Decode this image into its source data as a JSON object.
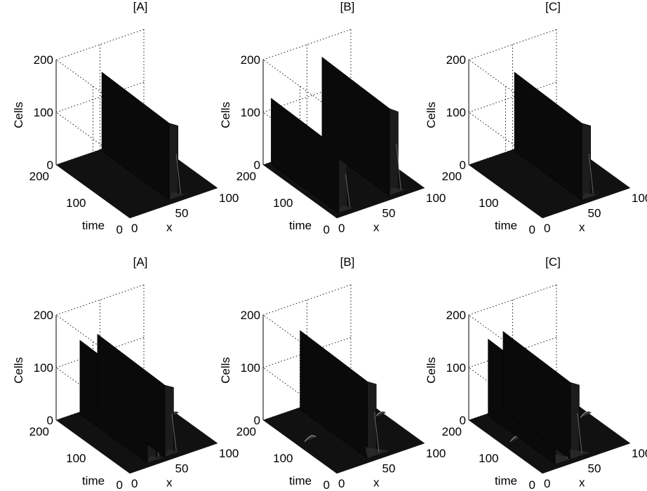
{
  "chart_data": [
    {
      "type": "surface",
      "title": "[A]",
      "xlabel": "x",
      "ylabel": "time",
      "zlabel": "Cells",
      "xlim": [
        0,
        100
      ],
      "ylim": [
        0,
        200
      ],
      "zlim": [
        0,
        200
      ],
      "xticks": [
        "0",
        "50",
        "100"
      ],
      "yticks": [
        "0",
        "100",
        "200"
      ],
      "zticks": [
        "0",
        "100",
        "200"
      ],
      "peaks": [
        {
          "x": 55,
          "height": 150,
          "side": 1,
          "tail": 0.35,
          "ripples": []
        }
      ]
    },
    {
      "type": "surface",
      "title": "[B]",
      "xlabel": "x",
      "ylabel": "time",
      "zlabel": "Cells",
      "xlim": [
        0,
        100
      ],
      "ylim": [
        0,
        200
      ],
      "zlim": [
        0,
        200
      ],
      "xticks": [
        "0",
        "50",
        "100"
      ],
      "yticks": [
        "0",
        "100",
        "200"
      ],
      "zticks": [
        "0",
        "100",
        "200"
      ],
      "peaks": [
        {
          "x": 12,
          "height": 125,
          "side": 1,
          "tail": 0.3,
          "ripples": []
        },
        {
          "x": 70,
          "height": 170,
          "side": 1,
          "tail": 0.35,
          "ripples": []
        }
      ]
    },
    {
      "type": "surface",
      "title": "[C]",
      "xlabel": "x",
      "ylabel": "time",
      "zlabel": "Cells",
      "xlim": [
        0,
        100
      ],
      "ylim": [
        0,
        200
      ],
      "zlim": [
        0,
        200
      ],
      "xticks": [
        "0",
        "50",
        "100"
      ],
      "yticks": [
        "0",
        "100",
        "200"
      ],
      "zticks": [
        "0",
        "100",
        "200"
      ],
      "peaks": [
        {
          "x": 55,
          "height": 150,
          "side": 1,
          "tail": 0.3,
          "ripples": []
        }
      ]
    },
    {
      "type": "surface",
      "title": "[A]",
      "xlabel": "x",
      "ylabel": "time",
      "zlabel": "Cells",
      "xlim": [
        0,
        100
      ],
      "ylim": [
        0,
        200
      ],
      "zlim": [
        0,
        200
      ],
      "xticks": [
        "0",
        "50",
        "100"
      ],
      "yticks": [
        "0",
        "100",
        "200"
      ],
      "zticks": [
        "0",
        "100",
        "200"
      ],
      "peaks": [
        {
          "x": 30,
          "height": 140,
          "side": -1,
          "tail": 0.3,
          "ripples": []
        },
        {
          "x": 50,
          "height": 140,
          "side": 1,
          "tail": 0.3,
          "ripples": [
            80,
            95
          ]
        }
      ]
    },
    {
      "type": "surface",
      "title": "[B]",
      "xlabel": "x",
      "ylabel": "time",
      "zlabel": "Cells",
      "xlim": [
        0,
        100
      ],
      "ylim": [
        0,
        200
      ],
      "zlim": [
        0,
        200
      ],
      "xticks": [
        "0",
        "50",
        "100"
      ],
      "yticks": [
        "0",
        "100",
        "200"
      ],
      "zticks": [
        "0",
        "100",
        "200"
      ],
      "peaks": [
        {
          "x": 45,
          "height": 150,
          "side": 1,
          "tail": 0.6,
          "ripples": [
            15,
            70,
            95
          ]
        }
      ]
    },
    {
      "type": "surface",
      "title": "[C]",
      "xlabel": "x",
      "ylabel": "time",
      "zlabel": "Cells",
      "xlim": [
        0,
        100
      ],
      "ylim": [
        0,
        200
      ],
      "zlim": [
        0,
        200
      ],
      "xticks": [
        "0",
        "50",
        "100"
      ],
      "yticks": [
        "0",
        "100",
        "200"
      ],
      "zticks": [
        "0",
        "100",
        "200"
      ],
      "peaks": [
        {
          "x": 25,
          "height": 145,
          "side": -1,
          "tail": 0.5,
          "ripples": []
        },
        {
          "x": 42,
          "height": 150,
          "side": 1,
          "tail": 0.5,
          "ripples": [
            15,
            75,
            95
          ]
        }
      ]
    }
  ]
}
